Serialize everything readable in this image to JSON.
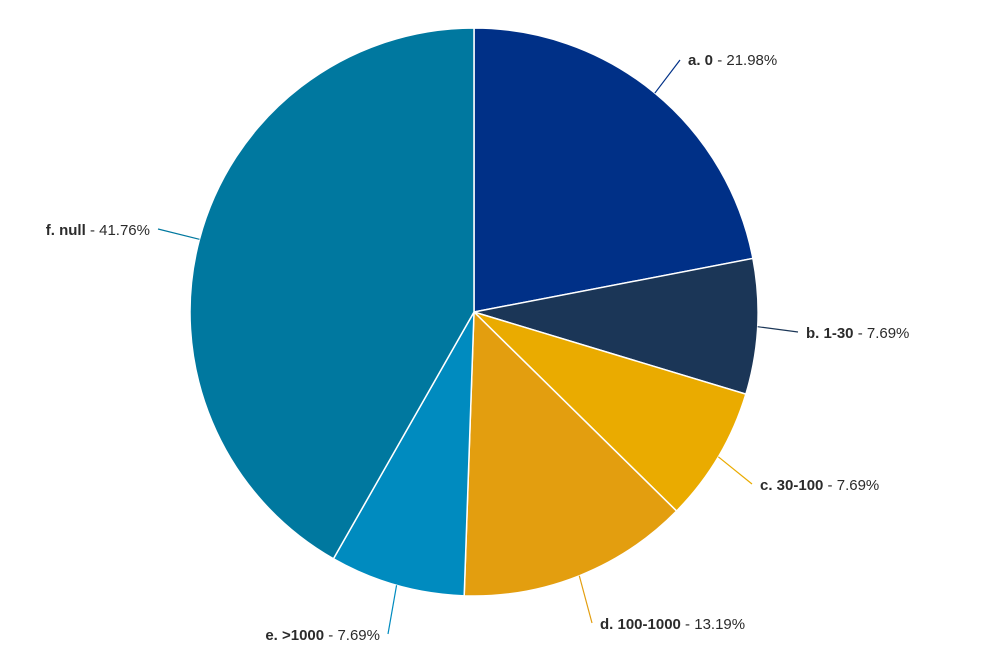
{
  "chart_data": {
    "type": "pie",
    "title": "",
    "slices": [
      {
        "label": "a. 0",
        "value": 21.98,
        "value_text": "21.98%",
        "color": "#003087"
      },
      {
        "label": "b. 1-30",
        "value": 7.69,
        "value_text": "7.69%",
        "color": "#1b3657"
      },
      {
        "label": "c. 30-100",
        "value": 7.69,
        "value_text": "7.69%",
        "color": "#eaab00"
      },
      {
        "label": "d. 100-1000",
        "value": 13.19,
        "value_text": "13.19%",
        "color": "#e39e0f"
      },
      {
        "label": "e. >1000",
        "value": 7.69,
        "value_text": "7.69%",
        "color": "#008bbf"
      },
      {
        "label": "f. null",
        "value": 41.76,
        "value_text": "41.76%",
        "color": "#00789f"
      }
    ]
  }
}
